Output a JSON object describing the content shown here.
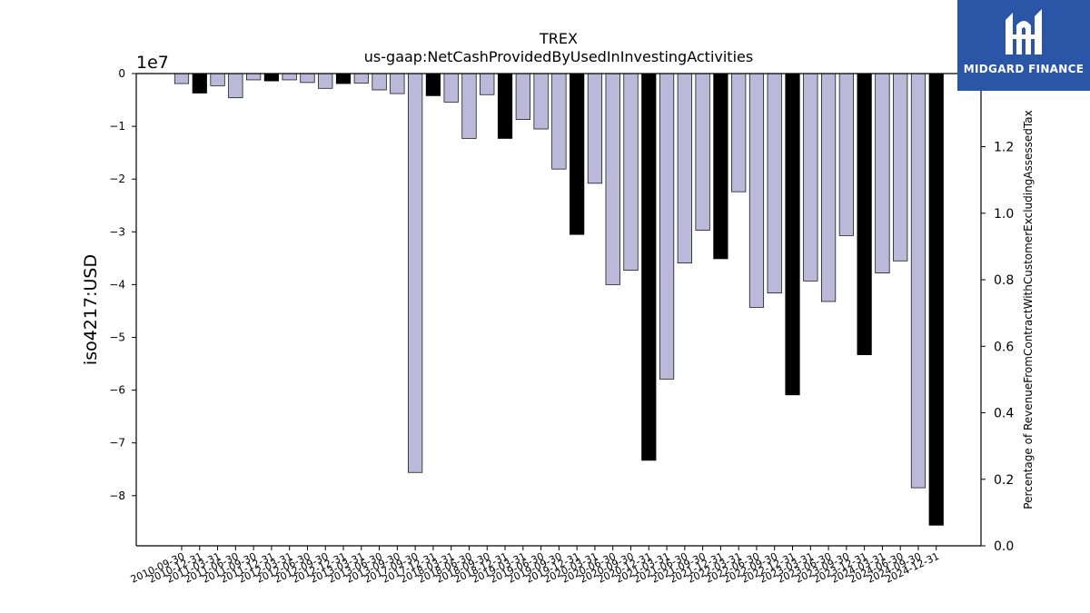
{
  "brand": {
    "name": "MIDGARD FINANCE",
    "bg_color": "#2b56a7"
  },
  "chart_data": {
    "type": "bar",
    "title": "TREX",
    "subtitle": "us-gaap:NetCashProvidedByUsedInInvestingActivities",
    "ylabel": "iso4217:USD",
    "y_offset_label": "1e7",
    "y2label": "Percentage of RevenueFromContractWithCustomerExcludingAssessedTax",
    "ylim": [
      -8.95,
      0
    ],
    "y2lim": [
      0,
      1.42
    ],
    "yticks": [
      "0",
      "−1",
      "−2",
      "−3",
      "−4",
      "−5",
      "−6",
      "−7",
      "−8"
    ],
    "y2ticks": [
      "0.0",
      "0.2",
      "0.4",
      "0.6",
      "0.8",
      "1.0",
      "1.2"
    ],
    "colors": {
      "quarter": "#bcb8d9",
      "year_end": "#000000"
    },
    "categories": [
      "2010-09-30",
      "2010-12-31",
      "2011-03-31",
      "2011-06-30",
      "2011-09-30",
      "2011-12-31",
      "2012-03-31",
      "2012-06-30",
      "2012-09-30",
      "2012-12-31",
      "2013-03-31",
      "2013-06-30",
      "2013-09-30",
      "2017-09-30",
      "2017-12-31",
      "2018-03-31",
      "2018-06-30",
      "2018-09-30",
      "2018-12-31",
      "2019-03-31",
      "2019-06-30",
      "2019-09-30",
      "2019-12-31",
      "2020-03-31",
      "2020-06-30",
      "2020-09-30",
      "2020-12-31",
      "2021-03-31",
      "2021-06-30",
      "2021-09-30",
      "2021-12-31",
      "2022-03-31",
      "2022-06-30",
      "2022-09-30",
      "2022-12-31",
      "2023-03-31",
      "2023-06-30",
      "2023-09-30",
      "2023-12-31",
      "2024-03-31",
      "2024-06-30",
      "2024-09-30",
      "2024-12-31"
    ],
    "values": [
      -0.19,
      -0.37,
      -0.23,
      -0.46,
      -0.12,
      -0.14,
      -0.12,
      -0.17,
      -0.28,
      -0.19,
      -0.18,
      -0.31,
      -0.38,
      -7.56,
      -0.42,
      -0.54,
      -1.23,
      -0.4,
      -1.23,
      -0.87,
      -1.05,
      -1.81,
      -3.05,
      -2.08,
      -4.0,
      -3.73,
      -7.33,
      -5.79,
      -3.59,
      -2.97,
      -3.51,
      -2.24,
      -4.43,
      -4.16,
      -6.09,
      -3.93,
      -4.32,
      -3.07,
      -5.33,
      -3.78,
      -3.55,
      -7.85,
      -8.56
    ],
    "year_end": [
      false,
      true,
      false,
      false,
      false,
      true,
      false,
      false,
      false,
      true,
      false,
      false,
      false,
      false,
      true,
      false,
      false,
      false,
      true,
      false,
      false,
      false,
      true,
      false,
      false,
      false,
      true,
      false,
      false,
      false,
      true,
      false,
      false,
      false,
      true,
      false,
      false,
      false,
      true,
      false,
      false,
      false,
      true
    ]
  }
}
